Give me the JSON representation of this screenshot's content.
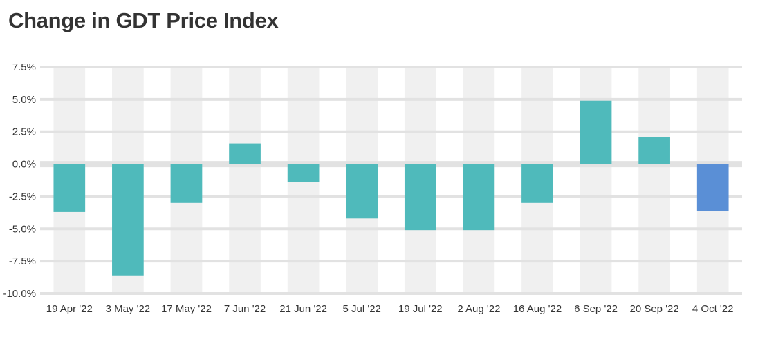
{
  "title": "Change in GDT Price Index",
  "chart_data": {
    "type": "bar",
    "title": "Change in GDT Price Index",
    "xlabel": "",
    "ylabel": "",
    "categories": [
      "19 Apr '22",
      "3 May '22",
      "17 May '22",
      "7 Jun '22",
      "21 Jun '22",
      "5 Jul '22",
      "19 Jul '22",
      "2 Aug '22",
      "16 Aug '22",
      "6 Sep '22",
      "20 Sep '22",
      "4 Oct '22"
    ],
    "values": [
      -3.7,
      -8.6,
      -3.0,
      1.6,
      -1.4,
      -4.2,
      -5.1,
      -5.1,
      -3.0,
      4.9,
      2.1,
      -3.6
    ],
    "ylim": [
      -10,
      7.5
    ],
    "yticks": [
      7.5,
      5,
      2.5,
      0,
      -2.5,
      -5,
      -7.5,
      -10
    ],
    "ytick_labels": [
      "7.5%",
      "5.0%",
      "2.5%",
      "0.0%",
      "-2.5%",
      "-5.0%",
      "-7.5%",
      "-10.0%"
    ],
    "grid": true,
    "legend": "none",
    "colors": {
      "bar": "#4fbabb",
      "highlight": "#5a8fd6",
      "band": "#f0f0f0",
      "gridline": "#e2e2e2"
    },
    "highlight_index": 11
  }
}
